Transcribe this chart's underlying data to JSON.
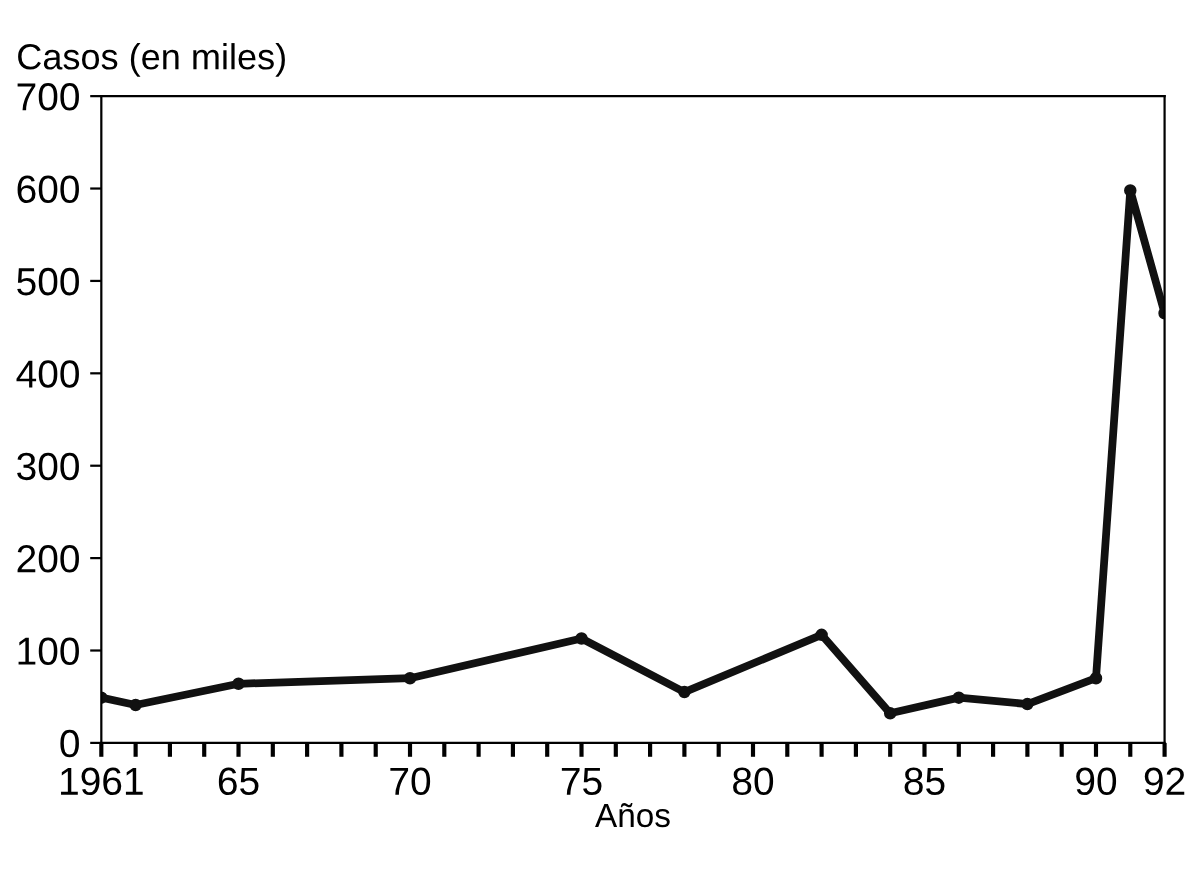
{
  "chart_data": {
    "type": "line",
    "ylabel": "Casos (en miles)",
    "xlabel": "Años",
    "x": [
      1961,
      1962,
      1965,
      1970,
      1975,
      1978,
      1982,
      1984,
      1986,
      1988,
      1990,
      1991,
      1992
    ],
    "series": [
      {
        "color": "#111111",
        "values": [
          49,
          41,
          64,
          70,
          113,
          55,
          117,
          32,
          49,
          42,
          70,
          598,
          465
        ]
      }
    ],
    "xlim": [
      1961,
      1992
    ],
    "ylim": [
      0,
      700
    ],
    "xticks": [
      {
        "value": 1961,
        "label": "1961"
      },
      {
        "value": 1965,
        "label": "65"
      },
      {
        "value": 1970,
        "label": "70"
      },
      {
        "value": 1975,
        "label": "75"
      },
      {
        "value": 1980,
        "label": "80"
      },
      {
        "value": 1985,
        "label": "85"
      },
      {
        "value": 1990,
        "label": "90"
      },
      {
        "value": 1992,
        "label": "92"
      }
    ],
    "yticks": [
      0,
      100,
      200,
      300,
      400,
      500,
      600,
      700
    ],
    "marker": "circle",
    "line_style": "solid",
    "grid": false,
    "legend": false
  }
}
